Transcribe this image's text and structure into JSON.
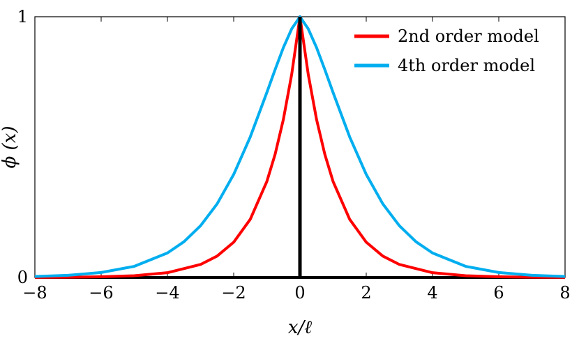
{
  "chart_data": {
    "type": "line",
    "title": "",
    "xlabel": "x/ℓ",
    "ylabel": "ϕ (x)",
    "xlim": [
      -8,
      8
    ],
    "ylim": [
      0,
      1
    ],
    "x_ticks": [
      "−8",
      "−6",
      "−4",
      "−2",
      "0",
      "2",
      "4",
      "6",
      "8"
    ],
    "y_ticks": [
      "0",
      "1"
    ],
    "legend_position": "top-right",
    "grid": false,
    "series": [
      {
        "name": "2nd order model",
        "color": "#ff0000",
        "x": [
          -8,
          -7,
          -6,
          -5,
          -4,
          -3,
          -2.5,
          -2,
          -1.5,
          -1,
          -0.75,
          -0.5,
          -0.25,
          0,
          0.25,
          0.5,
          0.75,
          1,
          1.5,
          2,
          2.5,
          3,
          4,
          5,
          6,
          7,
          8
        ],
        "y": [
          0.0003,
          0.0009,
          0.0025,
          0.0067,
          0.0183,
          0.0498,
          0.0821,
          0.1353,
          0.2231,
          0.3679,
          0.4724,
          0.6065,
          0.7788,
          1.0,
          0.7788,
          0.6065,
          0.4724,
          0.3679,
          0.2231,
          0.1353,
          0.0821,
          0.0498,
          0.0183,
          0.0067,
          0.0025,
          0.0009,
          0.0003
        ]
      },
      {
        "name": "4th order model",
        "color": "#00aeef",
        "x": [
          -8,
          -7,
          -6,
          -5,
          -4,
          -3.5,
          -3,
          -2.5,
          -2,
          -1.5,
          -1,
          -0.75,
          -0.5,
          -0.25,
          0,
          0.25,
          0.5,
          0.75,
          1,
          1.5,
          2,
          2.5,
          3,
          3.5,
          4,
          5,
          6,
          7,
          8
        ],
        "y": [
          0.0036,
          0.0083,
          0.019,
          0.0427,
          0.0939,
          0.1372,
          0.1984,
          0.2823,
          0.3953,
          0.5391,
          0.7092,
          0.7973,
          0.8819,
          0.9534,
          1.0,
          0.9534,
          0.8819,
          0.7973,
          0.7092,
          0.5391,
          0.3953,
          0.2823,
          0.1984,
          0.1372,
          0.0939,
          0.0427,
          0.019,
          0.0083,
          0.0036
        ]
      },
      {
        "name": "",
        "color": "#000000",
        "x": [
          0,
          0
        ],
        "y": [
          0,
          1
        ]
      }
    ]
  }
}
